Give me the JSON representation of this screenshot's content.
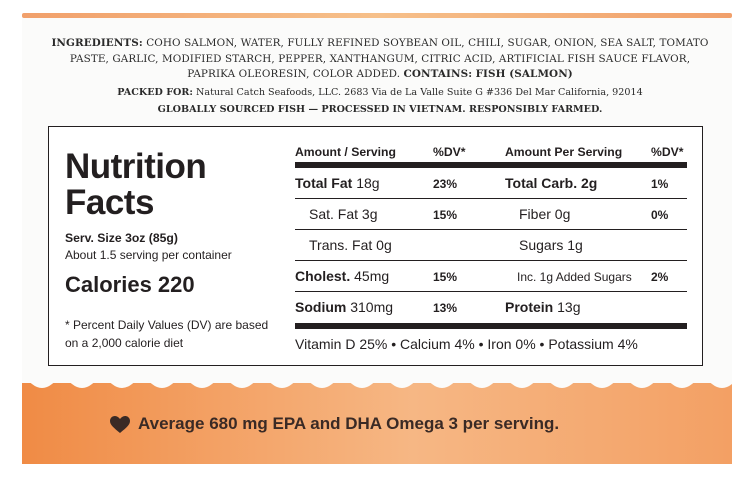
{
  "ingredients": {
    "label": "INGREDIENTS:",
    "text": "COHO SALMON, WATER, FULLY REFINED SOYBEAN OIL, CHILI, SUGAR, ONION, SEA SALT, TOMATO PASTE, GARLIC, MODIFIED STARCH, PEPPER, XANTHANGUM, CITRIC ACID, ARTIFICIAL FISH SAUCE FLAVOR, PAPRIKA OLEORESIN, COLOR ADDED.",
    "contains_label": "CONTAINS:",
    "contains_text": "FISH (SALMON)"
  },
  "packed": {
    "label": "PACKED FOR:",
    "text": "Natural Catch Seafoods, LLC. 2683 Via de La Valle Suite G #336 Del Mar California, 92014"
  },
  "origin": "GLOBALLY SOURCED FISH — PROCESSED IN VIETNAM. RESPONSIBLY FARMED.",
  "nutrition": {
    "title_line1": "Nutrition",
    "title_line2": "Facts",
    "serving_size": "Serv. Size 3oz (85g)",
    "servings_per_container": "About 1.5 serving per container",
    "calories": "Calories 220",
    "footnote": "* Percent Daily Values (DV) are based on a 2,000 calorie diet",
    "headers": {
      "amount_serving": "Amount / Serving",
      "dv1": "%DV*",
      "amount_per_serving": "Amount Per Serving",
      "dv2": "%DV*"
    },
    "rows": [
      {
        "n1": "Total Fat",
        "v1": "18g",
        "p1": "23%",
        "n2": "Total Carb.",
        "v2": "2g",
        "p2": "1%"
      },
      {
        "n1": "Sat. Fat",
        "v1": "3g",
        "p1": "15%",
        "n2": "Fiber",
        "v2": "0g",
        "p2": "0%"
      },
      {
        "n1": "Trans. Fat",
        "v1": "0g",
        "p1": "",
        "n2": "Sugars",
        "v2": "1g",
        "p2": ""
      },
      {
        "n1": "Cholest.",
        "v1": "45mg",
        "p1": "15%",
        "n2": "Inc. 1g Added Sugars",
        "v2": "",
        "p2": "2%"
      },
      {
        "n1": "Sodium",
        "v1": "310mg",
        "p1": "13%",
        "n2": "Protein",
        "v2": "13g",
        "p2": ""
      }
    ],
    "vitamins": "Vitamin D 25% • Calcium 4% • Iron 0% • Potassium 4%"
  },
  "banner": {
    "text": "Average 680 mg EPA and DHA Omega 3 per serving.",
    "icon": "heart-icon",
    "color_start": "#f08b45",
    "color_end": "#f6b784"
  }
}
